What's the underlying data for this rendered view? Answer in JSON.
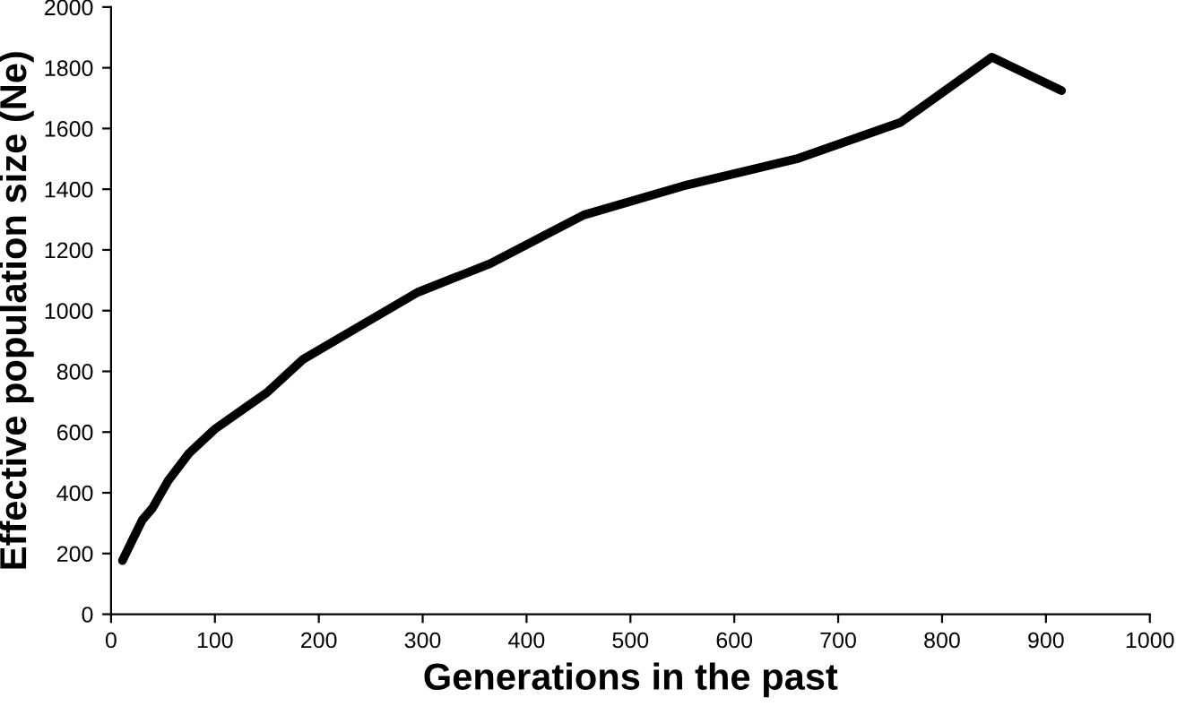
{
  "chart_data": {
    "type": "line",
    "xlabel": "Generations in the past",
    "ylabel": "Effective population size (Ne)",
    "x": [
      11,
      20,
      30,
      40,
      55,
      75,
      100,
      125,
      150,
      185,
      240,
      295,
      365,
      455,
      550,
      660,
      760,
      848,
      915
    ],
    "values": [
      177,
      240,
      310,
      350,
      440,
      530,
      610,
      670,
      730,
      840,
      950,
      1060,
      1155,
      1315,
      1410,
      1500,
      1620,
      1835,
      1725
    ],
    "color": "#000000",
    "xlim": [
      0,
      1000
    ],
    "ylim": [
      0,
      2000
    ],
    "xticks": [
      0,
      100,
      200,
      300,
      400,
      500,
      600,
      700,
      800,
      900,
      1000
    ],
    "yticks": [
      0,
      200,
      400,
      600,
      800,
      1000,
      1200,
      1400,
      1600,
      1800,
      2000
    ],
    "grid": false,
    "marker": "none",
    "line_style": "solid"
  }
}
